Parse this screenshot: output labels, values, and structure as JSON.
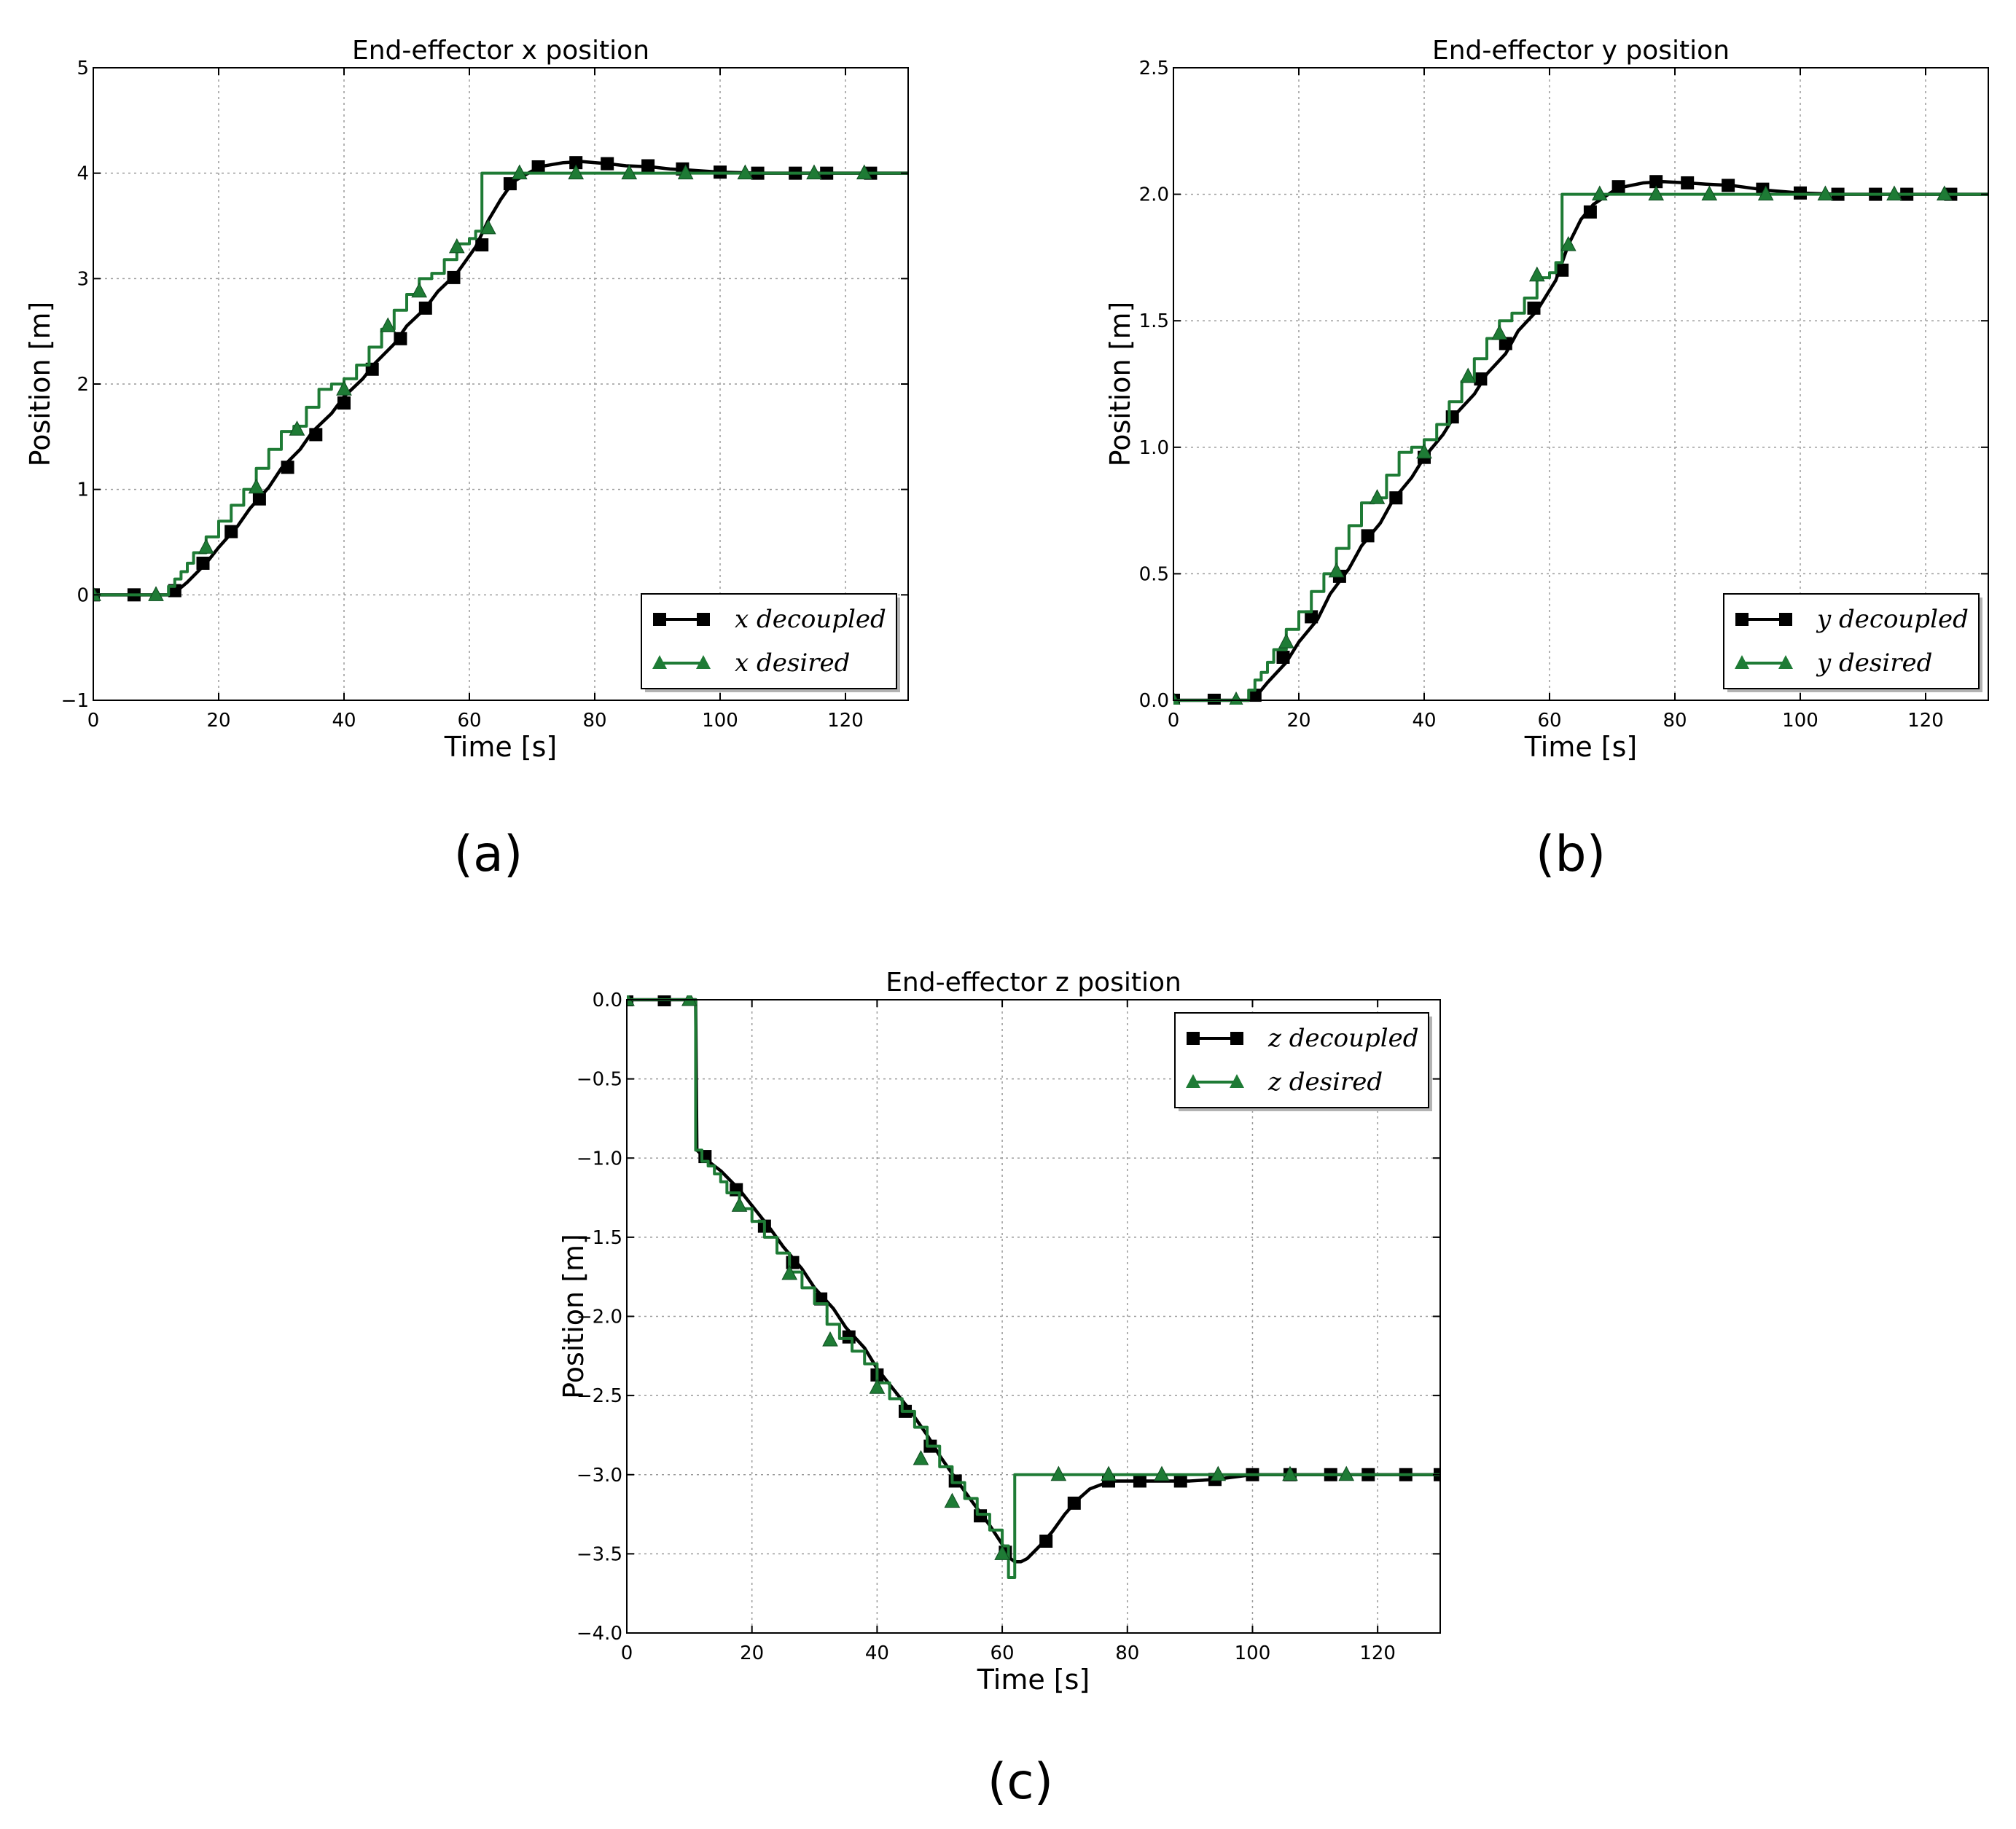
{
  "figure": {
    "panel_labels": [
      "(a)",
      "(b)",
      "(c)"
    ]
  },
  "colors": {
    "decoupled": "#000000",
    "desired": "#1e7b35",
    "grid": "#9a9a9a"
  },
  "chart_data": [
    {
      "type": "line",
      "title": "End-effector x position",
      "xlabel": "Time [s]",
      "ylabel": "Position [m]",
      "xlim": [
        0,
        130
      ],
      "ylim": [
        -1,
        5
      ],
      "xticks": [
        0,
        20,
        40,
        60,
        80,
        100,
        120
      ],
      "yticks": [
        -1,
        0,
        1,
        2,
        3,
        4,
        5
      ],
      "ytick_labels": [
        "−1",
        "0",
        "1",
        "2",
        "3",
        "4",
        "5"
      ],
      "grid": true,
      "legend_position": "lower-right",
      "legend": [
        {
          "var": "x",
          "text": "decoupled"
        },
        {
          "var": "x",
          "text": "desired"
        }
      ],
      "series": [
        {
          "name": "x decoupled",
          "marker": "square",
          "x": [
            0,
            6,
            12,
            13,
            15,
            18,
            20,
            23,
            25,
            28,
            30,
            33,
            35,
            38,
            40,
            43,
            45,
            48,
            50,
            53,
            55,
            58,
            61,
            63,
            65,
            67,
            70,
            72,
            75,
            78,
            82,
            85,
            89,
            92,
            95,
            100,
            106,
            112,
            118,
            124,
            130
          ],
          "y": [
            0,
            0,
            0,
            0.02,
            0.12,
            0.3,
            0.45,
            0.65,
            0.82,
            1.02,
            1.2,
            1.38,
            1.55,
            1.72,
            1.88,
            2.05,
            2.2,
            2.38,
            2.55,
            2.72,
            2.88,
            3.05,
            3.3,
            3.55,
            3.75,
            3.92,
            4.02,
            4.07,
            4.1,
            4.11,
            4.09,
            4.07,
            4.06,
            4.04,
            4.03,
            4.01,
            4.0,
            4.0,
            4.0,
            4.0,
            4.0
          ],
          "markers_x": [
            0,
            6.5,
            13,
            17.5,
            22,
            26.5,
            31,
            35.5,
            40,
            44.5,
            49,
            53,
            57.5,
            62,
            66.5,
            71,
            77,
            82,
            88.5,
            94,
            100,
            106,
            112,
            117,
            124
          ],
          "markers_y": [
            0,
            0,
            0.04,
            0.3,
            0.6,
            0.91,
            1.21,
            1.52,
            1.82,
            2.14,
            2.43,
            2.72,
            3.01,
            3.32,
            3.9,
            4.06,
            4.1,
            4.09,
            4.07,
            4.04,
            4.01,
            4.0,
            4.0,
            4.0,
            4.0
          ]
        },
        {
          "name": "x desired",
          "marker": "triangle",
          "step": true,
          "x": [
            0,
            11,
            12,
            13,
            14,
            15,
            16,
            18,
            20,
            22,
            24,
            26,
            28,
            30,
            32,
            34,
            36,
            38,
            40,
            42,
            44,
            46,
            48,
            50,
            52,
            54,
            56,
            58,
            60,
            61,
            62,
            130
          ],
          "y": [
            0,
            0,
            0.08,
            0.15,
            0.22,
            0.3,
            0.4,
            0.55,
            0.7,
            0.85,
            1.0,
            1.2,
            1.38,
            1.55,
            1.6,
            1.78,
            1.95,
            2.0,
            2.05,
            2.18,
            2.35,
            2.52,
            2.7,
            2.85,
            3.0,
            3.05,
            3.18,
            3.33,
            3.38,
            3.45,
            4.0,
            4.0
          ],
          "markers_x": [
            0,
            10,
            18,
            26,
            32.5,
            40,
            47,
            52,
            58,
            63,
            68,
            77,
            85.5,
            94.5,
            104,
            115,
            123
          ],
          "markers_y": [
            0,
            0,
            0.45,
            1.02,
            1.57,
            1.95,
            2.55,
            2.88,
            3.3,
            3.48,
            4.0,
            4.0,
            4.0,
            4.0,
            4.0,
            4.0,
            4.0
          ]
        }
      ]
    },
    {
      "type": "line",
      "title": "End-effector y position",
      "xlabel": "Time [s]",
      "ylabel": "Position [m]",
      "xlim": [
        0,
        130
      ],
      "ylim": [
        0,
        2.5
      ],
      "xticks": [
        0,
        20,
        40,
        60,
        80,
        100,
        120
      ],
      "yticks": [
        0,
        0.5,
        1.0,
        1.5,
        2.0,
        2.5
      ],
      "ytick_labels": [
        "0.0",
        "0.5",
        "1.0",
        "1.5",
        "2.0",
        "2.5"
      ],
      "grid": true,
      "legend_position": "lower-right",
      "legend": [
        {
          "var": "y",
          "text": "decoupled"
        },
        {
          "var": "y",
          "text": "desired"
        }
      ],
      "series": [
        {
          "name": "y decoupled",
          "marker": "square",
          "x": [
            0,
            6,
            12,
            13,
            15,
            18,
            20,
            23,
            25,
            28,
            30,
            33,
            35,
            38,
            40,
            43,
            45,
            48,
            50,
            53,
            55,
            58,
            61,
            63,
            65,
            67,
            70,
            72,
            75,
            78,
            82,
            85,
            89,
            92,
            95,
            100,
            106,
            112,
            118,
            124,
            130
          ],
          "y": [
            0,
            0,
            0,
            0.01,
            0.07,
            0.15,
            0.23,
            0.32,
            0.42,
            0.52,
            0.61,
            0.7,
            0.79,
            0.88,
            0.96,
            1.05,
            1.13,
            1.21,
            1.29,
            1.37,
            1.46,
            1.54,
            1.66,
            1.8,
            1.9,
            1.96,
            2.01,
            2.03,
            2.045,
            2.05,
            2.045,
            2.04,
            2.035,
            2.025,
            2.015,
            2.005,
            2.0,
            2.0,
            2.0,
            2.0,
            2.0
          ],
          "markers_x": [
            0,
            6.5,
            13,
            17.5,
            22,
            26.5,
            31,
            35.5,
            40,
            44.5,
            49,
            53,
            57.5,
            62,
            66.5,
            71,
            77,
            82,
            88.5,
            94,
            100,
            106,
            112,
            117,
            124
          ],
          "markers_y": [
            0,
            0,
            0.02,
            0.17,
            0.33,
            0.49,
            0.65,
            0.8,
            0.96,
            1.12,
            1.27,
            1.41,
            1.55,
            1.7,
            1.93,
            2.03,
            2.05,
            2.045,
            2.035,
            2.02,
            2.005,
            2.0,
            2.0,
            2.0,
            2.0
          ]
        },
        {
          "name": "y desired",
          "marker": "triangle",
          "step": true,
          "x": [
            0,
            11,
            12,
            13,
            14,
            15,
            16,
            18,
            20,
            22,
            24,
            26,
            28,
            30,
            32,
            34,
            36,
            38,
            40,
            42,
            44,
            46,
            48,
            50,
            52,
            54,
            56,
            58,
            60,
            61,
            62,
            130
          ],
          "y": [
            0,
            0,
            0.04,
            0.08,
            0.11,
            0.15,
            0.2,
            0.28,
            0.35,
            0.43,
            0.5,
            0.6,
            0.69,
            0.78,
            0.8,
            0.89,
            0.98,
            1.0,
            1.03,
            1.09,
            1.18,
            1.26,
            1.35,
            1.43,
            1.5,
            1.53,
            1.59,
            1.67,
            1.69,
            1.73,
            2.0,
            2.0
          ],
          "markers_x": [
            0,
            10,
            18,
            26,
            32.5,
            40,
            47,
            52,
            58,
            63,
            68,
            77,
            85.5,
            94.5,
            104,
            115,
            123
          ],
          "markers_y": [
            0,
            0,
            0.23,
            0.51,
            0.8,
            0.98,
            1.28,
            1.45,
            1.68,
            1.8,
            2.0,
            2.0,
            2.0,
            2.0,
            2.0,
            2.0,
            2.0
          ]
        }
      ]
    },
    {
      "type": "line",
      "title": "End-effector z position",
      "xlabel": "Time [s]",
      "ylabel": "Position [m]",
      "xlim": [
        0,
        130
      ],
      "ylim": [
        -4,
        0
      ],
      "xticks": [
        0,
        20,
        40,
        60,
        80,
        100,
        120
      ],
      "yticks": [
        -4,
        -3.5,
        -3,
        -2.5,
        -2,
        -1.5,
        -1,
        -0.5,
        0
      ],
      "ytick_labels": [
        "−4.0",
        "−3.5",
        "−3.0",
        "−2.5",
        "−2.0",
        "−1.5",
        "−1.0",
        "−0.5",
        "0.0"
      ],
      "grid": true,
      "legend_position": "upper-right",
      "legend": [
        {
          "var": "z",
          "text": "decoupled"
        },
        {
          "var": "z",
          "text": "desired"
        }
      ],
      "series": [
        {
          "name": "z decoupled",
          "marker": "square",
          "x": [
            0,
            11,
            11.2,
            12,
            13,
            15,
            18,
            20,
            23,
            25,
            28,
            30,
            33,
            35,
            38,
            40,
            43,
            45,
            48,
            50,
            53,
            55,
            58,
            60,
            61,
            62,
            63,
            64,
            66,
            68,
            70,
            72,
            74,
            76,
            78,
            82,
            86,
            90,
            94,
            100,
            106,
            112,
            118,
            124,
            130
          ],
          "y": [
            0,
            0,
            -0.95,
            -0.98,
            -1.02,
            -1.08,
            -1.2,
            -1.3,
            -1.45,
            -1.56,
            -1.7,
            -1.82,
            -1.95,
            -2.07,
            -2.2,
            -2.33,
            -2.48,
            -2.58,
            -2.75,
            -2.88,
            -3.05,
            -3.16,
            -3.32,
            -3.44,
            -3.52,
            -3.55,
            -3.55,
            -3.53,
            -3.45,
            -3.36,
            -3.25,
            -3.16,
            -3.09,
            -3.06,
            -3.04,
            -3.04,
            -3.04,
            -3.04,
            -3.03,
            -3.0,
            -3.0,
            -3.0,
            -3.0,
            -3.0,
            -3.0
          ],
          "markers_x": [
            0,
            6,
            12.5,
            17.5,
            22,
            26.5,
            31,
            35.5,
            40,
            44.5,
            48.5,
            52.5,
            56.5,
            60.5,
            67,
            71.5,
            77,
            82,
            88.5,
            94,
            100,
            106,
            112.5,
            118.5,
            124.5,
            130
          ],
          "markers_y": [
            0,
            0,
            -0.99,
            -1.2,
            -1.43,
            -1.66,
            -1.89,
            -2.13,
            -2.37,
            -2.6,
            -2.82,
            -3.04,
            -3.26,
            -3.49,
            -3.42,
            -3.18,
            -3.04,
            -3.04,
            -3.04,
            -3.03,
            -3.0,
            -3.0,
            -3.0,
            -3.0,
            -3.0,
            -3.0
          ]
        },
        {
          "name": "z desired",
          "marker": "triangle",
          "step": true,
          "x": [
            0,
            11,
            12,
            13,
            14,
            15,
            16,
            18,
            20,
            22,
            24,
            26,
            28,
            30,
            32,
            34,
            36,
            38,
            40,
            42,
            44,
            46,
            48,
            50,
            52,
            54,
            56,
            58,
            60,
            61,
            62,
            130
          ],
          "y": [
            0,
            -0.95,
            -1.02,
            -1.05,
            -1.1,
            -1.15,
            -1.22,
            -1.32,
            -1.4,
            -1.5,
            -1.6,
            -1.72,
            -1.82,
            -1.92,
            -2.05,
            -2.14,
            -2.22,
            -2.3,
            -2.42,
            -2.52,
            -2.6,
            -2.7,
            -2.82,
            -2.95,
            -3.05,
            -3.15,
            -3.25,
            -3.35,
            -3.45,
            -3.65,
            -3.0,
            -3.0
          ],
          "markers_x": [
            0,
            10,
            18,
            26,
            32.5,
            40,
            47,
            52,
            60,
            69,
            77,
            85.5,
            94.5,
            106,
            115
          ],
          "markers_y": [
            0,
            0,
            -1.3,
            -1.73,
            -2.15,
            -2.45,
            -2.9,
            -3.17,
            -3.5,
            -3.0,
            -3.0,
            -3.0,
            -3.0,
            -3.0,
            -3.0
          ]
        }
      ]
    }
  ]
}
